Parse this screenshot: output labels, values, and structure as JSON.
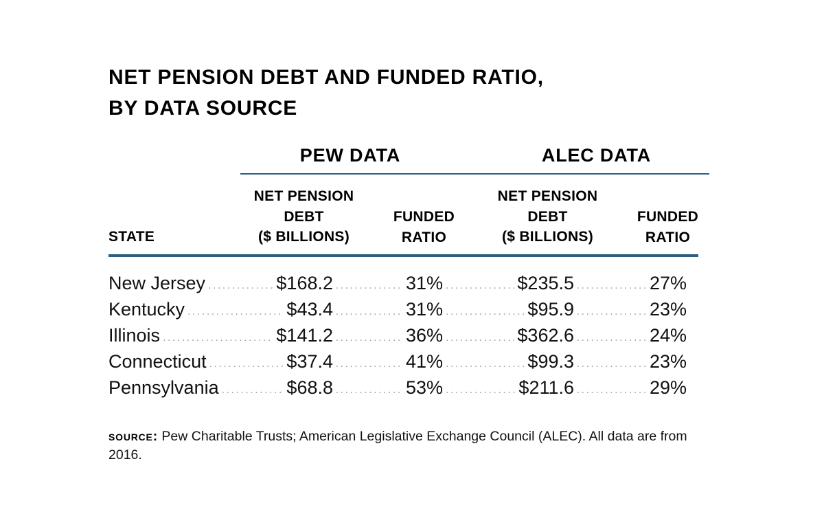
{
  "title": {
    "line1": "NET PENSION DEBT AND FUNDED RATIO,",
    "line2": "BY DATA SOURCE"
  },
  "groups": {
    "pew": "PEW DATA",
    "alec": "ALEC DATA"
  },
  "column_headers": {
    "state": "STATE",
    "debt": [
      "NET PENSION",
      "DEBT",
      "($ BILLIONS)"
    ],
    "ratio": [
      "FUNDED",
      "RATIO"
    ]
  },
  "rows": [
    {
      "state": "New Jersey",
      "pew_debt": "$168.2",
      "pew_ratio": "31%",
      "alec_debt": "$235.5",
      "alec_ratio": "27%"
    },
    {
      "state": "Kentucky",
      "pew_debt": "$43.4",
      "pew_ratio": "31%",
      "alec_debt": "$95.9",
      "alec_ratio": "23%"
    },
    {
      "state": "Illinois",
      "pew_debt": "$141.2",
      "pew_ratio": "36%",
      "alec_debt": "$362.6",
      "alec_ratio": "24%"
    },
    {
      "state": "Connecticut",
      "pew_debt": "$37.4",
      "pew_ratio": "41%",
      "alec_debt": "$99.3",
      "alec_ratio": "23%"
    },
    {
      "state": "Pennsylvania",
      "pew_debt": "$68.8",
      "pew_ratio": "53%",
      "alec_debt": "$211.6",
      "alec_ratio": "29%"
    }
  ],
  "source": {
    "label": "source:",
    "text": "Pew Charitable Trusts; American Legislative Exchange Council (ALEC). All data are from 2016."
  },
  "colors": {
    "rule": "#2c5f7f",
    "leader_dots": "#9aa3a9",
    "text": "#111111"
  },
  "chart_data": {
    "type": "table",
    "title": "NET PENSION DEBT AND FUNDED RATIO, BY DATA SOURCE",
    "column_groups": [
      "PEW DATA",
      "ALEC DATA"
    ],
    "columns": [
      "STATE",
      "NET PENSION DEBT ($ BILLIONS)",
      "FUNDED RATIO",
      "NET PENSION DEBT ($ BILLIONS)",
      "FUNDED RATIO"
    ],
    "categories": [
      "New Jersey",
      "Kentucky",
      "Illinois",
      "Connecticut",
      "Pennsylvania"
    ],
    "series": [
      {
        "name": "PEW DATA NET PENSION DEBT ($ BILLIONS)",
        "values": [
          168.2,
          43.4,
          141.2,
          37.4,
          68.8
        ]
      },
      {
        "name": "PEW DATA FUNDED RATIO",
        "values": [
          31,
          31,
          36,
          41,
          53
        ]
      },
      {
        "name": "ALEC DATA NET PENSION DEBT ($ BILLIONS)",
        "values": [
          235.5,
          95.9,
          362.6,
          99.3,
          211.6
        ]
      },
      {
        "name": "ALEC DATA FUNDED RATIO",
        "values": [
          27,
          23,
          24,
          23,
          29
        ]
      }
    ]
  }
}
